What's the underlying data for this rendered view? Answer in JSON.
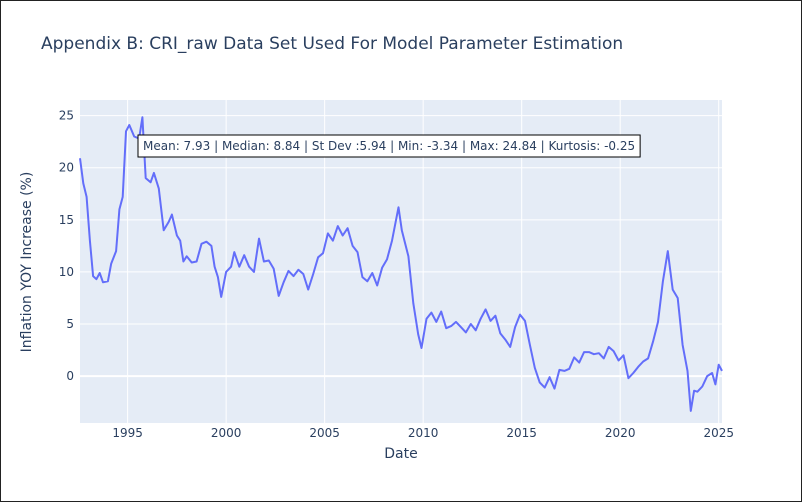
{
  "chart_data": {
    "type": "line",
    "title": "Appendix B: CRI_raw Data Set Used For Model Parameter Estimation",
    "xlabel": "Date",
    "ylabel": "Inflation YOY Increase (%)",
    "xlim": [
      "1992-08",
      "2025-03"
    ],
    "ylim": [
      -4.5,
      26.5
    ],
    "x_ticks": [
      "1995",
      "2000",
      "2005",
      "2010",
      "2015",
      "2020",
      "2025"
    ],
    "y_ticks": [
      "0",
      "5",
      "10",
      "15",
      "20",
      "25"
    ],
    "grid": true,
    "line_color": "#636efa",
    "background_color": "#e5ecf6",
    "annotation": "Mean: 7.93 | Median: 8.84 | St Dev :5.94 | Min: -3.34 | Max: 24.84 | Kurtosis: -0.25",
    "series": [
      {
        "points": [
          [
            "1992-08",
            20.9
          ],
          [
            "1992-10",
            18.5
          ],
          [
            "1992-12",
            17.2
          ],
          [
            "1993-02",
            13.0
          ],
          [
            "1993-04",
            9.6
          ],
          [
            "1993-06",
            9.3
          ],
          [
            "1993-08",
            9.9
          ],
          [
            "1993-10",
            9.0
          ],
          [
            "1994-01",
            9.1
          ],
          [
            "1994-03",
            10.8
          ],
          [
            "1994-06",
            12.0
          ],
          [
            "1994-08",
            16.0
          ],
          [
            "1994-10",
            17.2
          ],
          [
            "1994-12",
            23.5
          ],
          [
            "1995-02",
            24.1
          ],
          [
            "1995-05",
            23.0
          ],
          [
            "1995-08",
            22.8
          ],
          [
            "1995-10",
            24.84
          ],
          [
            "1995-12",
            19.0
          ],
          [
            "1996-03",
            18.6
          ],
          [
            "1996-05",
            19.5
          ],
          [
            "1996-08",
            18.0
          ],
          [
            "1996-11",
            14.0
          ],
          [
            "1997-02",
            14.8
          ],
          [
            "1997-04",
            15.5
          ],
          [
            "1997-07",
            13.5
          ],
          [
            "1997-09",
            13.0
          ],
          [
            "1997-11",
            11.0
          ],
          [
            "1998-01",
            11.5
          ],
          [
            "1998-04",
            10.9
          ],
          [
            "1998-07",
            11.0
          ],
          [
            "1998-10",
            12.7
          ],
          [
            "1999-01",
            12.9
          ],
          [
            "1999-04",
            12.5
          ],
          [
            "1999-06",
            10.5
          ],
          [
            "1999-08",
            9.5
          ],
          [
            "1999-10",
            7.6
          ],
          [
            "2000-01",
            10.0
          ],
          [
            "2000-04",
            10.5
          ],
          [
            "2000-06",
            11.9
          ],
          [
            "2000-09",
            10.5
          ],
          [
            "2000-12",
            11.6
          ],
          [
            "2001-03",
            10.5
          ],
          [
            "2001-06",
            10.0
          ],
          [
            "2001-09",
            13.2
          ],
          [
            "2001-12",
            11.0
          ],
          [
            "2002-03",
            11.1
          ],
          [
            "2002-06",
            10.3
          ],
          [
            "2002-09",
            7.7
          ],
          [
            "2002-12",
            9.0
          ],
          [
            "2003-03",
            10.1
          ],
          [
            "2003-06",
            9.6
          ],
          [
            "2003-09",
            10.2
          ],
          [
            "2003-12",
            9.8
          ],
          [
            "2004-03",
            8.3
          ],
          [
            "2004-06",
            9.8
          ],
          [
            "2004-09",
            11.4
          ],
          [
            "2004-12",
            11.8
          ],
          [
            "2005-03",
            13.7
          ],
          [
            "2005-06",
            13.0
          ],
          [
            "2005-09",
            14.4
          ],
          [
            "2005-12",
            13.5
          ],
          [
            "2006-03",
            14.2
          ],
          [
            "2006-06",
            12.5
          ],
          [
            "2006-09",
            11.9
          ],
          [
            "2006-12",
            9.5
          ],
          [
            "2007-03",
            9.1
          ],
          [
            "2007-06",
            9.9
          ],
          [
            "2007-09",
            8.7
          ],
          [
            "2007-12",
            10.4
          ],
          [
            "2008-03",
            11.2
          ],
          [
            "2008-06",
            13.0
          ],
          [
            "2008-10",
            16.2
          ],
          [
            "2008-12",
            14.0
          ],
          [
            "2009-04",
            11.5
          ],
          [
            "2009-07",
            7.0
          ],
          [
            "2009-10",
            4.0
          ],
          [
            "2009-12",
            2.7
          ],
          [
            "2010-03",
            5.5
          ],
          [
            "2010-06",
            6.1
          ],
          [
            "2010-09",
            5.2
          ],
          [
            "2010-12",
            6.2
          ],
          [
            "2011-03",
            4.6
          ],
          [
            "2011-06",
            4.8
          ],
          [
            "2011-09",
            5.2
          ],
          [
            "2011-12",
            4.7
          ],
          [
            "2012-03",
            4.2
          ],
          [
            "2012-06",
            5.0
          ],
          [
            "2012-09",
            4.4
          ],
          [
            "2012-12",
            5.5
          ],
          [
            "2013-03",
            6.4
          ],
          [
            "2013-06",
            5.3
          ],
          [
            "2013-09",
            5.8
          ],
          [
            "2013-12",
            4.1
          ],
          [
            "2014-03",
            3.5
          ],
          [
            "2014-06",
            2.8
          ],
          [
            "2014-09",
            4.7
          ],
          [
            "2014-12",
            5.9
          ],
          [
            "2015-03",
            5.3
          ],
          [
            "2015-06",
            3.0
          ],
          [
            "2015-09",
            0.8
          ],
          [
            "2015-12",
            -0.6
          ],
          [
            "2016-03",
            -1.1
          ],
          [
            "2016-06",
            -0.1
          ],
          [
            "2016-09",
            -1.2
          ],
          [
            "2016-12",
            0.6
          ],
          [
            "2017-03",
            0.5
          ],
          [
            "2017-06",
            0.7
          ],
          [
            "2017-09",
            1.8
          ],
          [
            "2017-12",
            1.3
          ],
          [
            "2018-03",
            2.3
          ],
          [
            "2018-06",
            2.3
          ],
          [
            "2018-09",
            2.1
          ],
          [
            "2018-12",
            2.2
          ],
          [
            "2019-03",
            1.7
          ],
          [
            "2019-06",
            2.8
          ],
          [
            "2019-09",
            2.4
          ],
          [
            "2019-12",
            1.5
          ],
          [
            "2020-03",
            2.0
          ],
          [
            "2020-06",
            -0.2
          ],
          [
            "2020-09",
            0.3
          ],
          [
            "2020-12",
            0.9
          ],
          [
            "2021-03",
            1.4
          ],
          [
            "2021-06",
            1.7
          ],
          [
            "2021-09",
            3.3
          ],
          [
            "2021-12",
            5.2
          ],
          [
            "2022-03",
            9.1
          ],
          [
            "2022-06",
            12.0
          ],
          [
            "2022-09",
            8.3
          ],
          [
            "2022-12",
            7.5
          ],
          [
            "2023-03",
            3.0
          ],
          [
            "2023-06",
            0.5
          ],
          [
            "2023-08",
            -3.34
          ],
          [
            "2023-10",
            -1.4
          ],
          [
            "2023-12",
            -1.5
          ],
          [
            "2024-03",
            -1.0
          ],
          [
            "2024-06",
            0.0
          ],
          [
            "2024-09",
            0.3
          ],
          [
            "2024-11",
            -0.8
          ],
          [
            "2025-01",
            1.1
          ],
          [
            "2025-03",
            0.5
          ]
        ]
      }
    ]
  }
}
